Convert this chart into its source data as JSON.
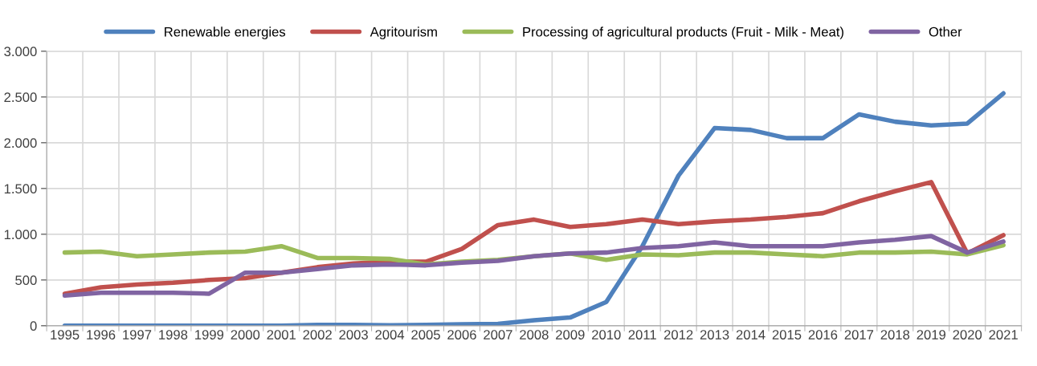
{
  "chart_data": {
    "type": "line",
    "categories": [
      "1995",
      "1996",
      "1997",
      "1998",
      "1999",
      "2000",
      "2001",
      "2002",
      "2003",
      "2004",
      "2005",
      "2006",
      "2007",
      "2008",
      "2009",
      "2010",
      "2011",
      "2012",
      "2013",
      "2014",
      "2015",
      "2016",
      "2017",
      "2018",
      "2019",
      "2020",
      "2021"
    ],
    "series": [
      {
        "name": "Renewable energies",
        "color": "#4f81bd",
        "values": [
          0,
          0,
          0,
          0,
          0,
          0,
          0,
          10,
          10,
          5,
          10,
          15,
          20,
          60,
          90,
          260,
          870,
          1640,
          2160,
          2140,
          2050,
          2050,
          2310,
          2230,
          2190,
          2210,
          2540
        ]
      },
      {
        "name": "Agritourism",
        "color": "#c0504d",
        "values": [
          350,
          420,
          450,
          470,
          500,
          520,
          580,
          640,
          680,
          700,
          700,
          840,
          1100,
          1160,
          1080,
          1110,
          1160,
          1110,
          1140,
          1160,
          1190,
          1230,
          1360,
          1470,
          1570,
          790,
          990
        ]
      },
      {
        "name": "Processing of agricultural products (Fruit - Milk - Meat)",
        "color": "#9bbb59",
        "values": [
          800,
          810,
          760,
          780,
          800,
          810,
          870,
          740,
          740,
          730,
          670,
          700,
          720,
          760,
          790,
          720,
          780,
          770,
          800,
          800,
          780,
          760,
          800,
          800,
          810,
          780,
          880
        ]
      },
      {
        "name": "Other",
        "color": "#8064a2",
        "values": [
          330,
          360,
          360,
          360,
          350,
          580,
          580,
          620,
          660,
          670,
          660,
          690,
          710,
          760,
          790,
          800,
          850,
          870,
          910,
          870,
          870,
          870,
          910,
          940,
          980,
          800,
          920
        ]
      }
    ],
    "ylim": [
      0,
      3000
    ],
    "yticks": [
      0,
      500,
      {
        "value": 1000,
        "label": "1.000"
      },
      {
        "value": 1500,
        "label": "1.500"
      },
      {
        "value": 2000,
        "label": "2.000"
      },
      {
        "value": 2500,
        "label": "2.500"
      },
      {
        "value": 3000,
        "label": "3.000"
      }
    ],
    "grid": true,
    "legend": "top",
    "marker": "none",
    "line_style": "solid"
  }
}
